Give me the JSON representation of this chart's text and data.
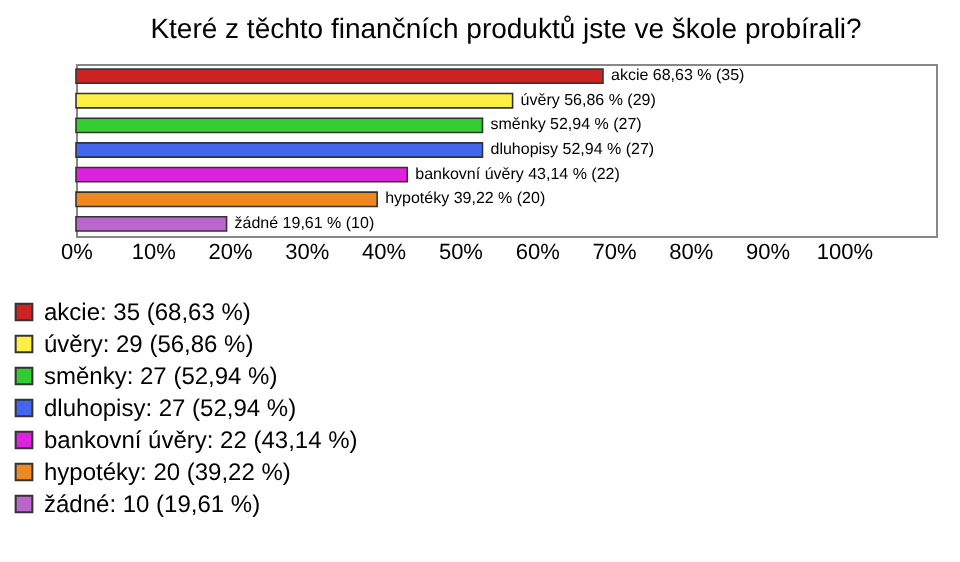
{
  "chart_data": {
    "type": "bar",
    "orientation": "horizontal",
    "stacked": true,
    "title": "Které z těchto finančních produktů jste ve škole probírali?",
    "categories": [
      null,
      null,
      null,
      null,
      null,
      null,
      null
    ],
    "series": [
      {
        "name": "akcie: 35 (68,63 %)",
        "color": "#cc2222",
        "values": [
          68.63,
          null,
          null,
          null,
          null,
          null,
          null
        ],
        "value_labels": [
          "akcie 68,63 % (35)",
          null,
          null,
          null,
          null,
          null,
          null
        ]
      },
      {
        "name": "úvěry: 29 (56,86 %)",
        "color": "#ffee44",
        "values": [
          null,
          56.86,
          null,
          null,
          null,
          null,
          null
        ],
        "value_labels": [
          null,
          "úvěry 56,86 % (29)",
          null,
          null,
          null,
          null,
          null
        ]
      },
      {
        "name": "směnky: 27 (52,94 %)",
        "color": "#33cc33",
        "values": [
          null,
          null,
          52.94,
          null,
          null,
          null,
          null
        ],
        "value_labels": [
          null,
          null,
          "směnky 52,94 % (27)",
          null,
          null,
          null,
          null
        ]
      },
      {
        "name": "dluhopisy: 27 (52,94 %)",
        "color": "#4466ee",
        "values": [
          null,
          null,
          null,
          52.94,
          null,
          null,
          null
        ],
        "value_labels": [
          null,
          null,
          null,
          "dluhopisy 52,94 % (27)",
          null,
          null,
          null
        ]
      },
      {
        "name": "bankovní úvěry: 22 (43,14 %)",
        "color": "#dd22dd",
        "values": [
          null,
          null,
          null,
          null,
          43.14,
          null,
          null
        ],
        "value_labels": [
          null,
          null,
          null,
          null,
          "bankovní úvěry 43,14 % (22)",
          null,
          null
        ]
      },
      {
        "name": "hypotéky: 20 (39,22 %)",
        "color": "#ee8822",
        "values": [
          null,
          null,
          null,
          null,
          null,
          39.22,
          null
        ],
        "value_labels": [
          null,
          null,
          null,
          null,
          null,
          "hypotéky 39,22 % (20)",
          null
        ]
      },
      {
        "name": "žádné: 10 (19,61 %)",
        "color": "#bb66cc",
        "values": [
          null,
          null,
          null,
          null,
          null,
          null,
          19.61
        ],
        "value_labels": [
          null,
          null,
          null,
          null,
          null,
          null,
          "žádné 19,61 % (10)"
        ]
      }
    ],
    "xlim": [
      0,
      112
    ],
    "xticks": [
      {
        "value": 0,
        "label": "0%"
      },
      {
        "value": 10,
        "label": "10%"
      },
      {
        "value": 20,
        "label": "20%"
      },
      {
        "value": 30,
        "label": "30%"
      },
      {
        "value": 40,
        "label": "40%"
      },
      {
        "value": 50,
        "label": "50%"
      },
      {
        "value": 60,
        "label": "60%"
      },
      {
        "value": 70,
        "label": "70%"
      },
      {
        "value": 80,
        "label": "80%"
      },
      {
        "value": 90,
        "label": "90%"
      },
      {
        "value": 100,
        "label": "100%"
      }
    ],
    "tick_labels": "x",
    "legend": "bottom"
  }
}
